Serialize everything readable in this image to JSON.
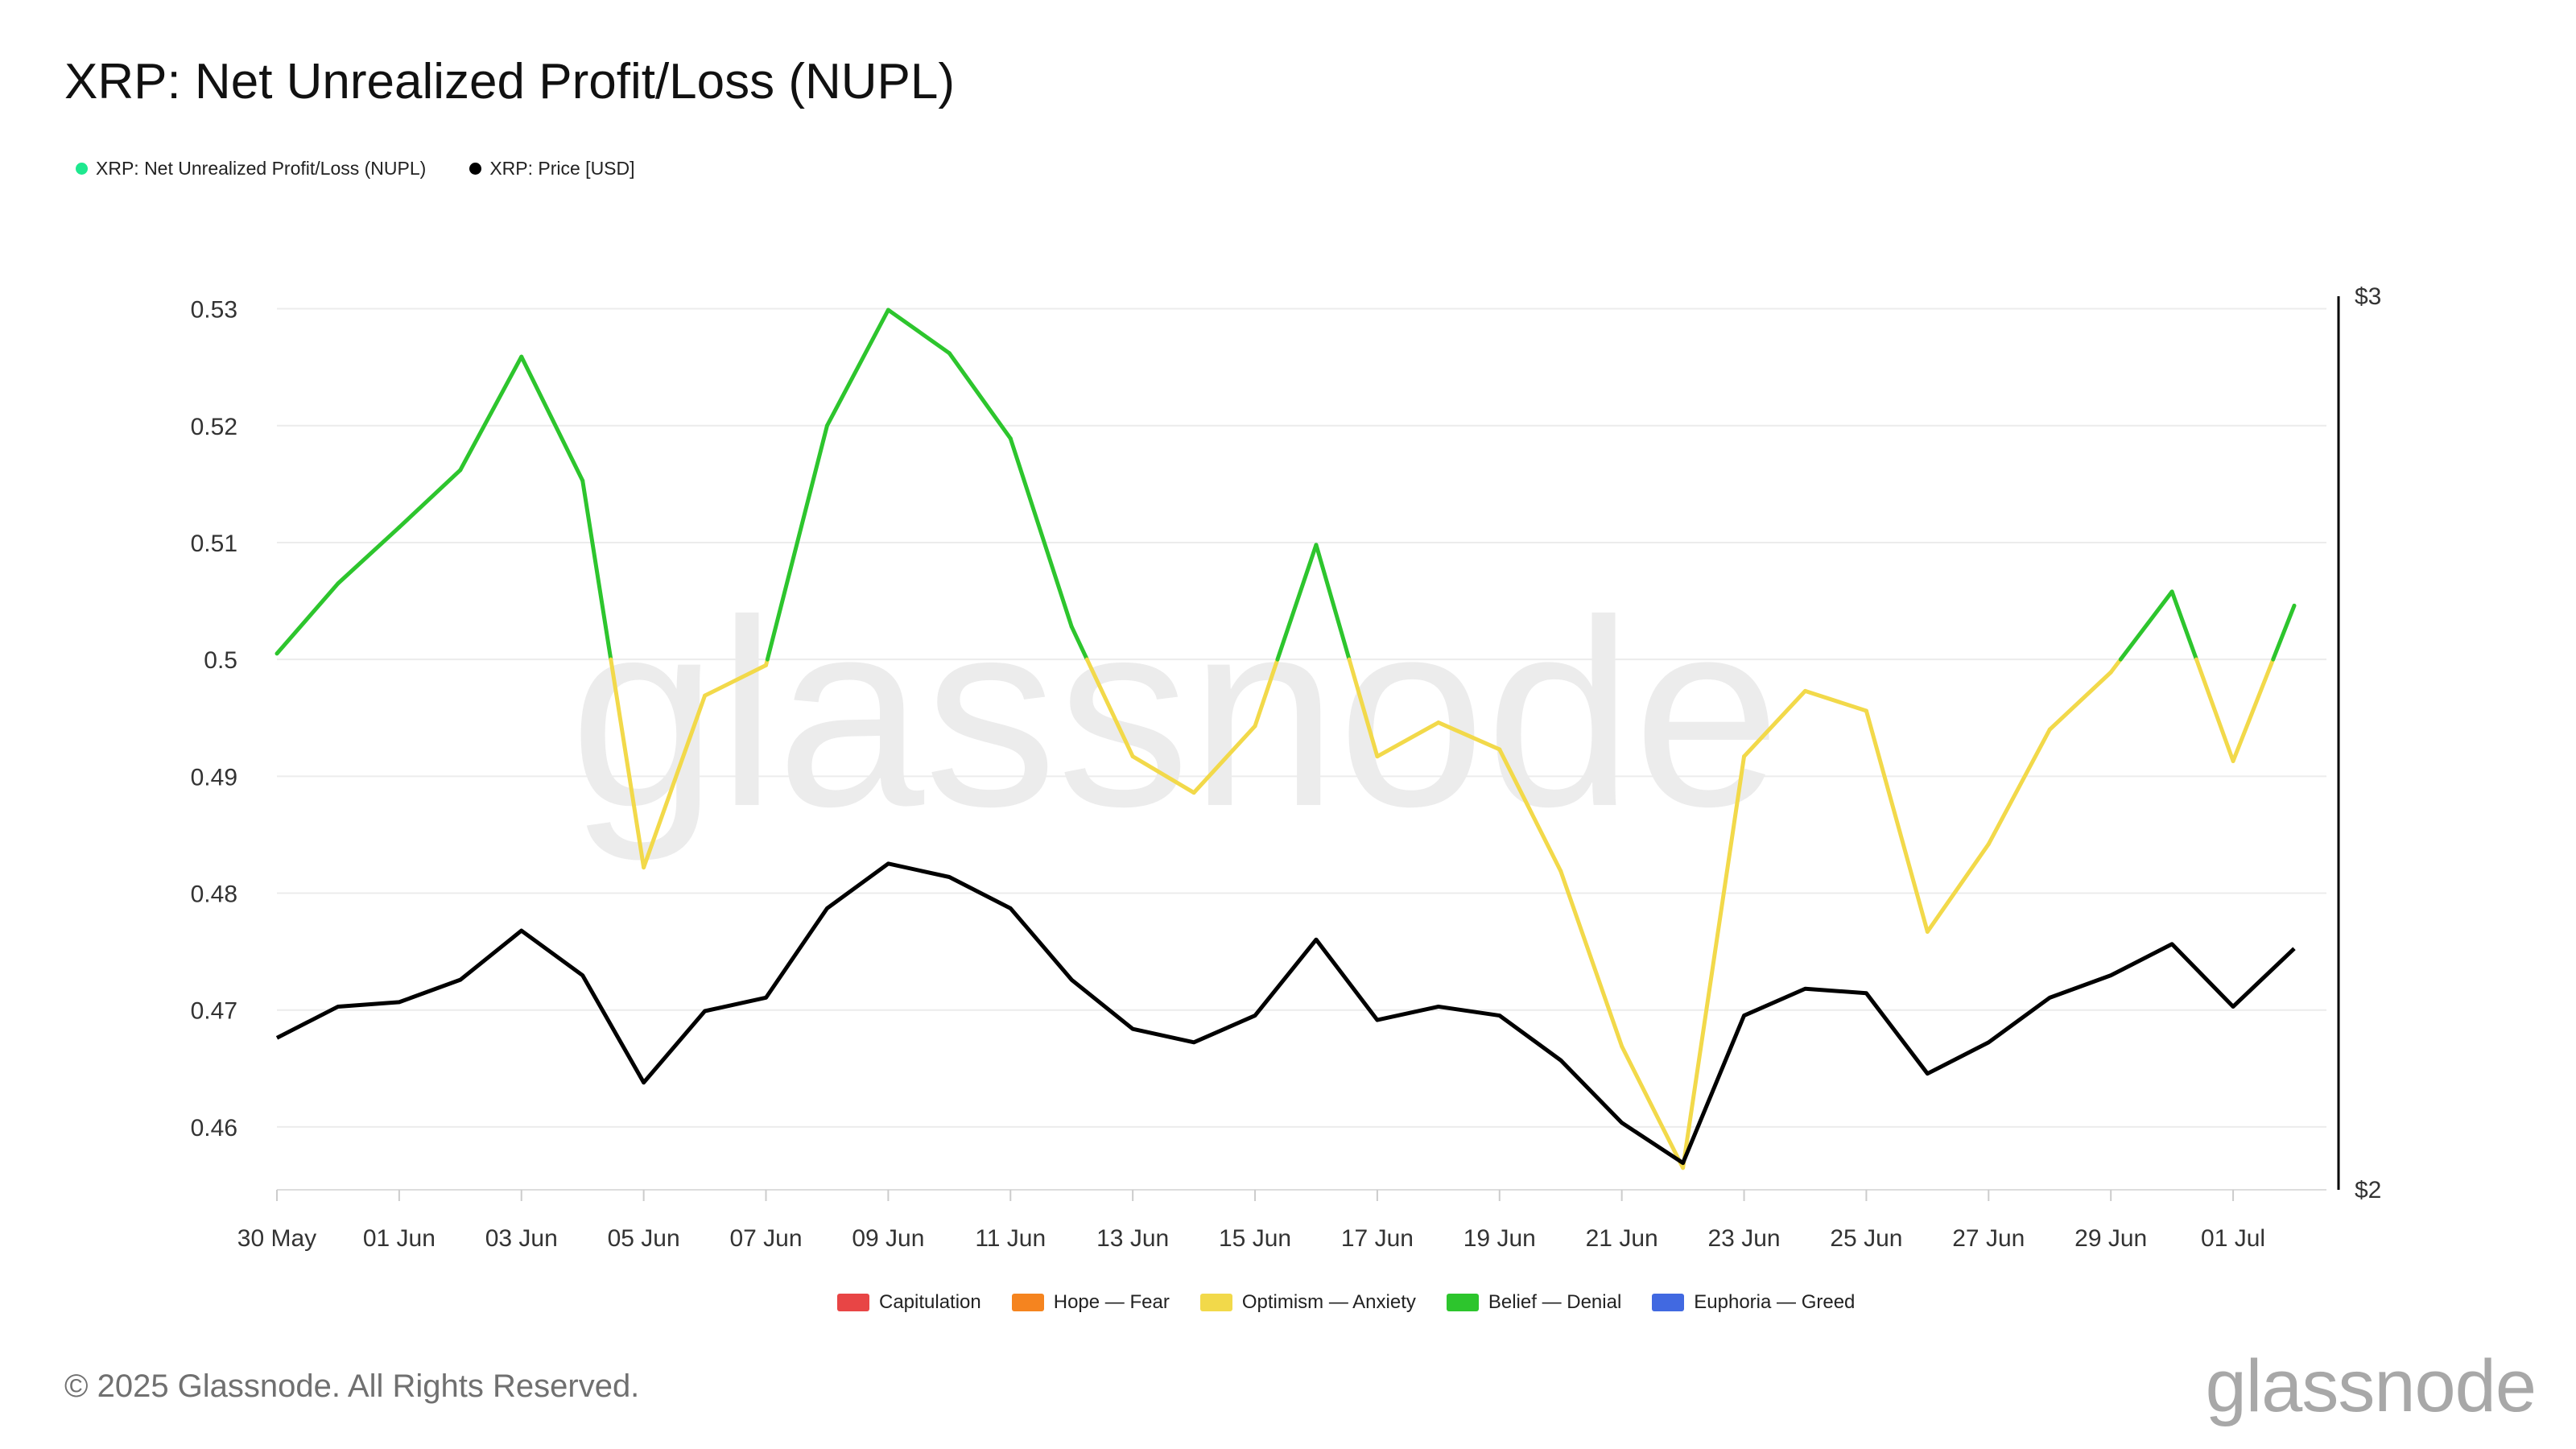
{
  "header": {
    "title": "XRP: Net Unrealized Profit/Loss (NUPL)"
  },
  "top_legend": [
    {
      "label": "XRP: Net Unrealized Profit/Loss (NUPL)",
      "color": "#1ee88f",
      "icon": "green-dot-icon"
    },
    {
      "label": "XRP: Price [USD]",
      "color": "#000000",
      "icon": "black-dot-icon"
    }
  ],
  "zone_legend": [
    {
      "label": "Capitulation",
      "color": "#e84545"
    },
    {
      "label": "Hope — Fear",
      "color": "#f5841f"
    },
    {
      "label": "Optimism — Anxiety",
      "color": "#f2d94a"
    },
    {
      "label": "Belief — Denial",
      "color": "#2dc52d"
    },
    {
      "label": "Euphoria — Greed",
      "color": "#4169e1"
    }
  ],
  "footer": {
    "copyright": "© 2025 Glassnode. All Rights Reserved.",
    "logo": "glassnode"
  },
  "watermark": "glassnode",
  "chart_data": {
    "type": "line",
    "title": "XRP: Net Unrealized Profit/Loss (NUPL)",
    "x_tick_labels": [
      "30 May",
      "01 Jun",
      "03 Jun",
      "05 Jun",
      "07 Jun",
      "09 Jun",
      "11 Jun",
      "13 Jun",
      "15 Jun",
      "17 Jun",
      "19 Jun",
      "21 Jun",
      "23 Jun",
      "25 Jun",
      "27 Jun",
      "29 Jun",
      "01 Jul"
    ],
    "x": [
      "30 May",
      "31 May",
      "01 Jun",
      "02 Jun",
      "03 Jun",
      "04 Jun",
      "05 Jun",
      "06 Jun",
      "07 Jun",
      "08 Jun",
      "09 Jun",
      "10 Jun",
      "11 Jun",
      "12 Jun",
      "13 Jun",
      "14 Jun",
      "15 Jun",
      "16 Jun",
      "17 Jun",
      "18 Jun",
      "19 Jun",
      "20 Jun",
      "21 Jun",
      "22 Jun",
      "23 Jun",
      "24 Jun",
      "25 Jun",
      "26 Jun",
      "27 Jun",
      "28 Jun",
      "29 Jun",
      "30 Jun",
      "01 Jul",
      "02 Jul"
    ],
    "y_left": {
      "ticks": [
        "0.46",
        "0.47",
        "0.48",
        "0.49",
        "0.5",
        "0.51",
        "0.52",
        "0.53"
      ],
      "range": [
        0.456,
        0.533
      ]
    },
    "y_right": {
      "ticks": [
        "$2",
        "$3"
      ],
      "range": [
        2,
        3
      ]
    },
    "zone_threshold": 0.5,
    "grid": true,
    "legend_position": "top-left",
    "series": [
      {
        "name": "XRP: Net Unrealized Profit/Loss (NUPL)",
        "axis": "left",
        "colors": {
          "above": "#2dc52d",
          "below": "#f2d94a"
        },
        "values": [
          0.5005,
          0.5065,
          0.5113,
          0.5162,
          0.5259,
          0.5153,
          0.4822,
          0.4969,
          0.4995,
          0.52,
          0.5299,
          0.5262,
          0.5189,
          0.5028,
          0.4917,
          0.4886,
          0.4943,
          0.5098,
          0.4917,
          0.4946,
          0.4923,
          0.4819,
          0.4669,
          0.4565,
          0.4917,
          0.4973,
          0.4956,
          0.4767,
          0.4842,
          0.494,
          0.4989,
          0.5058,
          0.4913,
          0.5046
        ]
      },
      {
        "name": "XRP: Price [USD]",
        "axis": "right",
        "color": "#000000",
        "values": [
          2.17,
          2.205,
          2.21,
          2.235,
          2.29,
          2.24,
          2.12,
          2.2,
          2.215,
          2.315,
          2.365,
          2.35,
          2.315,
          2.235,
          2.18,
          2.165,
          2.195,
          2.28,
          2.19,
          2.205,
          2.195,
          2.145,
          2.075,
          2.03,
          2.195,
          2.225,
          2.22,
          2.13,
          2.165,
          2.215,
          2.24,
          2.275,
          2.205,
          2.27
        ]
      }
    ]
  }
}
